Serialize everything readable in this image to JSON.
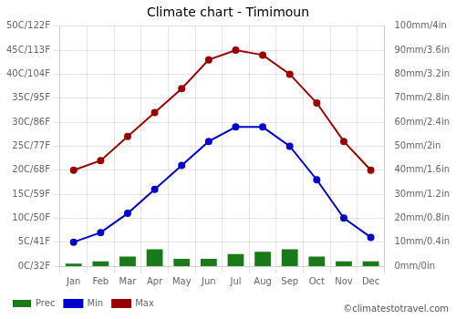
{
  "chart_data": {
    "type": "bar",
    "title": "Climate chart - Timimoun",
    "categories": [
      "Jan",
      "Feb",
      "Mar",
      "Apr",
      "May",
      "Jun",
      "Jul",
      "Aug",
      "Sep",
      "Oct",
      "Nov",
      "Dec"
    ],
    "series": [
      {
        "name": "Prec",
        "type": "bar",
        "axis": "y2",
        "color": "#1a7a1a",
        "values": [
          1,
          2,
          4,
          7,
          3,
          3,
          5,
          6,
          7,
          4,
          2,
          2
        ]
      },
      {
        "name": "Min",
        "type": "line",
        "marker": "circle",
        "color": "#0000cc",
        "values": [
          5,
          7,
          11,
          16,
          21,
          26,
          29,
          29,
          25,
          18,
          10,
          6
        ]
      },
      {
        "name": "Max",
        "type": "line",
        "marker": "circle",
        "color": "#990000",
        "values": [
          20,
          22,
          27,
          32,
          37,
          43,
          45,
          44,
          40,
          34,
          26,
          20
        ]
      }
    ],
    "ylim": [
      0,
      50
    ],
    "yticks": [
      {
        "value": 0,
        "label": "0C/32F"
      },
      {
        "value": 5,
        "label": "5C/41F"
      },
      {
        "value": 10,
        "label": "10C/50F"
      },
      {
        "value": 15,
        "label": "15C/59F"
      },
      {
        "value": 20,
        "label": "20C/68F"
      },
      {
        "value": 25,
        "label": "25C/77F"
      },
      {
        "value": 30,
        "label": "30C/86F"
      },
      {
        "value": 35,
        "label": "35C/95F"
      },
      {
        "value": 40,
        "label": "40C/104F"
      },
      {
        "value": 45,
        "label": "45C/113F"
      },
      {
        "value": 50,
        "label": "50C/122F"
      }
    ],
    "y2lim": [
      0,
      100
    ],
    "y2ticks": [
      {
        "value": 0,
        "label": "0mm/0in"
      },
      {
        "value": 10,
        "label": "10mm/0.4in"
      },
      {
        "value": 20,
        "label": "20mm/0.8in"
      },
      {
        "value": 30,
        "label": "30mm/1.2in"
      },
      {
        "value": 40,
        "label": "40mm/1.6in"
      },
      {
        "value": 50,
        "label": "50mm/2in"
      },
      {
        "value": 60,
        "label": "60mm/2.4in"
      },
      {
        "value": 70,
        "label": "70mm/2.8in"
      },
      {
        "value": 80,
        "label": "80mm/3.2in"
      },
      {
        "value": 90,
        "label": "90mm/3.6in"
      },
      {
        "value": 100,
        "label": "100mm/4in"
      }
    ],
    "grid": true,
    "legend": "lower left",
    "annotations": [
      "©climatestotravel.com"
    ]
  }
}
